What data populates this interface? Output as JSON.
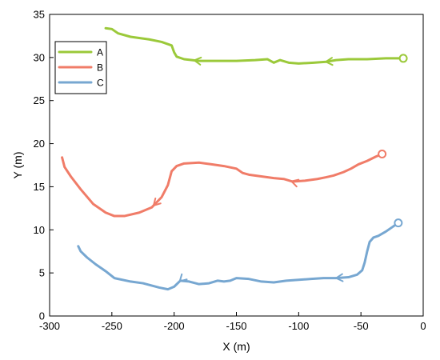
{
  "chart_data": {
    "type": "line",
    "xlabel": "X (m)",
    "ylabel": "Y (m)",
    "xlim": [
      -300,
      0
    ],
    "ylim": [
      0,
      35
    ],
    "x_ticks": [
      -300,
      -250,
      -200,
      -150,
      -100,
      -50,
      0
    ],
    "y_ticks": [
      0,
      5,
      10,
      15,
      20,
      25,
      30,
      35
    ],
    "x_tick_labels": [
      "-300",
      "-250",
      "-200",
      "-150",
      "-100",
      "-50",
      "0"
    ],
    "y_tick_labels": [
      "0",
      "5",
      "10",
      "15",
      "20",
      "25",
      "30",
      "35"
    ],
    "grid": false,
    "legend_position": "top-left",
    "series": [
      {
        "name": "A",
        "color": "#9bc93a",
        "start_marker": "circle",
        "direction_arrows": true,
        "points": [
          [
            -16,
            29.9
          ],
          [
            -30,
            29.9
          ],
          [
            -45,
            29.8
          ],
          [
            -60,
            29.8
          ],
          [
            -70,
            29.7
          ],
          [
            -78,
            29.5
          ],
          [
            -88,
            29.4
          ],
          [
            -100,
            29.3
          ],
          [
            -108,
            29.4
          ],
          [
            -115,
            29.7
          ],
          [
            -120,
            29.4
          ],
          [
            -125,
            29.8
          ],
          [
            -135,
            29.7
          ],
          [
            -150,
            29.6
          ],
          [
            -165,
            29.6
          ],
          [
            -180,
            29.6
          ],
          [
            -192,
            29.8
          ],
          [
            -198,
            30.1
          ],
          [
            -200,
            30.6
          ],
          [
            -202,
            31.4
          ],
          [
            -210,
            31.8
          ],
          [
            -220,
            32.1
          ],
          [
            -235,
            32.4
          ],
          [
            -245,
            32.8
          ],
          [
            -250,
            33.3
          ],
          [
            -255,
            33.4
          ]
        ]
      },
      {
        "name": "B",
        "color": "#f07c68",
        "start_marker": "circle",
        "direction_arrows": true,
        "points": [
          [
            -33,
            18.8
          ],
          [
            -38,
            18.5
          ],
          [
            -45,
            18.0
          ],
          [
            -52,
            17.6
          ],
          [
            -58,
            17.1
          ],
          [
            -64,
            16.7
          ],
          [
            -72,
            16.3
          ],
          [
            -78,
            16.1
          ],
          [
            -85,
            15.9
          ],
          [
            -95,
            15.7
          ],
          [
            -105,
            15.6
          ],
          [
            -112,
            15.9
          ],
          [
            -120,
            16.0
          ],
          [
            -130,
            16.2
          ],
          [
            -140,
            16.4
          ],
          [
            -145,
            16.6
          ],
          [
            -150,
            17.1
          ],
          [
            -160,
            17.4
          ],
          [
            -170,
            17.6
          ],
          [
            -180,
            17.8
          ],
          [
            -192,
            17.7
          ],
          [
            -198,
            17.4
          ],
          [
            -202,
            16.8
          ],
          [
            -205,
            15.2
          ],
          [
            -210,
            13.8
          ],
          [
            -218,
            12.6
          ],
          [
            -228,
            12.0
          ],
          [
            -240,
            11.6
          ],
          [
            -248,
            11.6
          ],
          [
            -255,
            12.0
          ],
          [
            -265,
            13.0
          ],
          [
            -275,
            14.7
          ],
          [
            -283,
            16.2
          ],
          [
            -288,
            17.3
          ],
          [
            -290,
            18.4
          ]
        ]
      },
      {
        "name": "C",
        "color": "#77a7d1",
        "start_marker": "circle",
        "direction_arrows": true,
        "points": [
          [
            -20,
            10.8
          ],
          [
            -25,
            10.3
          ],
          [
            -30,
            9.8
          ],
          [
            -36,
            9.3
          ],
          [
            -40,
            9.1
          ],
          [
            -43,
            8.6
          ],
          [
            -45,
            7.5
          ],
          [
            -47,
            6.2
          ],
          [
            -49,
            5.3
          ],
          [
            -53,
            4.8
          ],
          [
            -60,
            4.5
          ],
          [
            -70,
            4.4
          ],
          [
            -80,
            4.4
          ],
          [
            -90,
            4.3
          ],
          [
            -100,
            4.2
          ],
          [
            -110,
            4.1
          ],
          [
            -120,
            3.9
          ],
          [
            -130,
            4.0
          ],
          [
            -140,
            4.3
          ],
          [
            -150,
            4.4
          ],
          [
            -155,
            4.1
          ],
          [
            -160,
            4.0
          ],
          [
            -165,
            4.1
          ],
          [
            -172,
            3.8
          ],
          [
            -180,
            3.7
          ],
          [
            -188,
            4.0
          ],
          [
            -195,
            4.1
          ],
          [
            -200,
            3.4
          ],
          [
            -205,
            3.1
          ],
          [
            -212,
            3.3
          ],
          [
            -225,
            3.8
          ],
          [
            -235,
            4.0
          ],
          [
            -248,
            4.4
          ],
          [
            -255,
            5.2
          ],
          [
            -263,
            6.0
          ],
          [
            -270,
            6.8
          ],
          [
            -275,
            7.5
          ],
          [
            -277,
            8.1
          ]
        ]
      }
    ]
  }
}
